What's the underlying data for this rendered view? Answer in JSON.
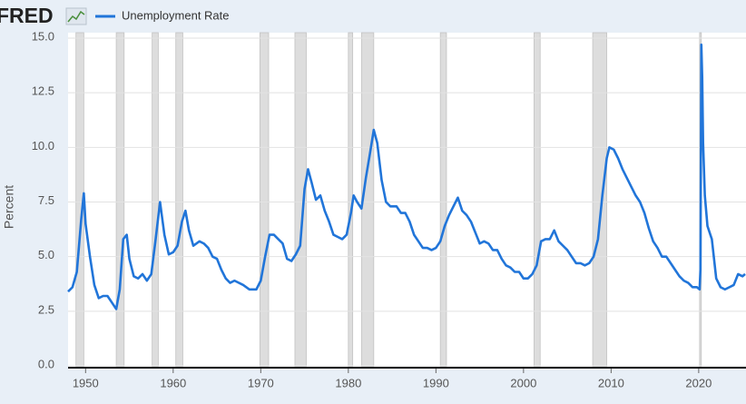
{
  "logo": "FRED",
  "chart_data": {
    "type": "line",
    "y_label": "Percent",
    "x": [
      1948.0,
      1948.5,
      1949.0,
      1949.5,
      1949.8,
      1950.0,
      1950.5,
      1951.0,
      1951.5,
      1952.0,
      1952.5,
      1953.0,
      1953.5,
      1953.9,
      1954.3,
      1954.7,
      1955.0,
      1955.5,
      1956.0,
      1956.5,
      1957.0,
      1957.5,
      1958.0,
      1958.5,
      1959.0,
      1959.5,
      1960.0,
      1960.5,
      1961.0,
      1961.4,
      1961.8,
      1962.3,
      1963.0,
      1963.5,
      1964.0,
      1964.5,
      1965.0,
      1965.5,
      1966.0,
      1966.5,
      1967.0,
      1968.0,
      1968.7,
      1969.5,
      1970.0,
      1970.5,
      1971.0,
      1971.5,
      1972.0,
      1972.5,
      1973.0,
      1973.5,
      1974.0,
      1974.5,
      1975.0,
      1975.4,
      1975.8,
      1976.3,
      1976.8,
      1977.3,
      1977.8,
      1978.3,
      1978.8,
      1979.3,
      1979.8,
      1980.3,
      1980.6,
      1981.0,
      1981.5,
      1982.0,
      1982.5,
      1982.9,
      1983.3,
      1983.8,
      1984.3,
      1984.8,
      1985.5,
      1986.0,
      1986.5,
      1987.0,
      1987.5,
      1988.0,
      1988.5,
      1989.0,
      1989.5,
      1990.0,
      1990.5,
      1991.0,
      1991.5,
      1992.0,
      1992.5,
      1993.0,
      1993.5,
      1994.0,
      1994.5,
      1995.0,
      1995.5,
      1996.0,
      1996.5,
      1997.0,
      1997.5,
      1998.0,
      1998.5,
      1999.0,
      1999.5,
      2000.0,
      2000.5,
      2001.0,
      2001.5,
      2002.0,
      2002.5,
      2003.0,
      2003.5,
      2004.0,
      2004.5,
      2005.0,
      2005.5,
      2006.0,
      2006.5,
      2007.0,
      2007.5,
      2008.0,
      2008.5,
      2009.0,
      2009.5,
      2009.8,
      2010.3,
      2010.8,
      2011.3,
      2011.8,
      2012.3,
      2012.8,
      2013.3,
      2013.8,
      2014.3,
      2014.8,
      2015.3,
      2015.8,
      2016.3,
      2016.8,
      2017.3,
      2017.8,
      2018.3,
      2018.8,
      2019.3,
      2019.8,
      2020.1,
      2020.2,
      2020.3,
      2020.4,
      2020.5,
      2020.7,
      2021.0,
      2021.5,
      2022.0,
      2022.5,
      2023.0,
      2023.5,
      2024.0,
      2024.5,
      2025.0,
      2025.3
    ],
    "series": [
      {
        "name": "Unemployment Rate",
        "color": "#2175d9",
        "values": [
          3.4,
          3.6,
          4.3,
          6.7,
          7.9,
          6.5,
          5.0,
          3.7,
          3.1,
          3.2,
          3.2,
          2.9,
          2.6,
          3.5,
          5.8,
          6.0,
          4.9,
          4.1,
          4.0,
          4.2,
          3.9,
          4.2,
          5.8,
          7.5,
          6.0,
          5.1,
          5.2,
          5.5,
          6.6,
          7.1,
          6.2,
          5.5,
          5.7,
          5.6,
          5.4,
          5.0,
          4.9,
          4.4,
          4.0,
          3.8,
          3.9,
          3.7,
          3.5,
          3.5,
          3.9,
          5.0,
          6.0,
          6.0,
          5.8,
          5.6,
          4.9,
          4.8,
          5.1,
          5.5,
          8.1,
          9.0,
          8.4,
          7.6,
          7.8,
          7.1,
          6.6,
          6.0,
          5.9,
          5.8,
          6.0,
          7.0,
          7.8,
          7.5,
          7.2,
          8.6,
          9.8,
          10.8,
          10.2,
          8.5,
          7.5,
          7.3,
          7.3,
          7.0,
          7.0,
          6.6,
          6.0,
          5.7,
          5.4,
          5.4,
          5.3,
          5.4,
          5.7,
          6.4,
          6.9,
          7.3,
          7.7,
          7.1,
          6.9,
          6.6,
          6.1,
          5.6,
          5.7,
          5.6,
          5.3,
          5.3,
          4.9,
          4.6,
          4.5,
          4.3,
          4.3,
          4.0,
          4.0,
          4.2,
          4.6,
          5.7,
          5.8,
          5.8,
          6.2,
          5.7,
          5.5,
          5.3,
          5.0,
          4.7,
          4.7,
          4.6,
          4.7,
          5.0,
          5.8,
          7.8,
          9.5,
          10.0,
          9.9,
          9.5,
          9.0,
          8.6,
          8.2,
          7.8,
          7.5,
          7.0,
          6.3,
          5.7,
          5.4,
          5.0,
          5.0,
          4.7,
          4.4,
          4.1,
          3.9,
          3.8,
          3.6,
          3.6,
          3.5,
          4.4,
          14.7,
          13.2,
          10.2,
          7.8,
          6.4,
          5.8,
          4.0,
          3.6,
          3.5,
          3.6,
          3.7,
          4.2,
          4.1,
          4.2
        ]
      }
    ],
    "recessions": [
      [
        1948.9,
        1949.8
      ],
      [
        1953.5,
        1954.4
      ],
      [
        1957.6,
        1958.3
      ],
      [
        1960.3,
        1961.1
      ],
      [
        1969.9,
        1970.9
      ],
      [
        1973.9,
        1975.2
      ],
      [
        1980.0,
        1980.5
      ],
      [
        1981.5,
        1982.9
      ],
      [
        1990.5,
        1991.2
      ],
      [
        2001.2,
        2001.9
      ],
      [
        2007.9,
        2009.5
      ],
      [
        2020.1,
        2020.3
      ]
    ],
    "xlim": [
      1948.0,
      2025.4
    ],
    "ylim": [
      0,
      15
    ],
    "xticks": [
      1950,
      1960,
      1970,
      1980,
      1990,
      2000,
      2010,
      2020
    ],
    "yticks": [
      {
        "value": 0,
        "label": "0.0"
      },
      2.5,
      {
        "value": 5,
        "label": "5.0"
      },
      7.5,
      {
        "value": 10,
        "label": "10.0"
      },
      12.5,
      {
        "value": 15,
        "label": "15.0"
      }
    ],
    "grid": true
  }
}
